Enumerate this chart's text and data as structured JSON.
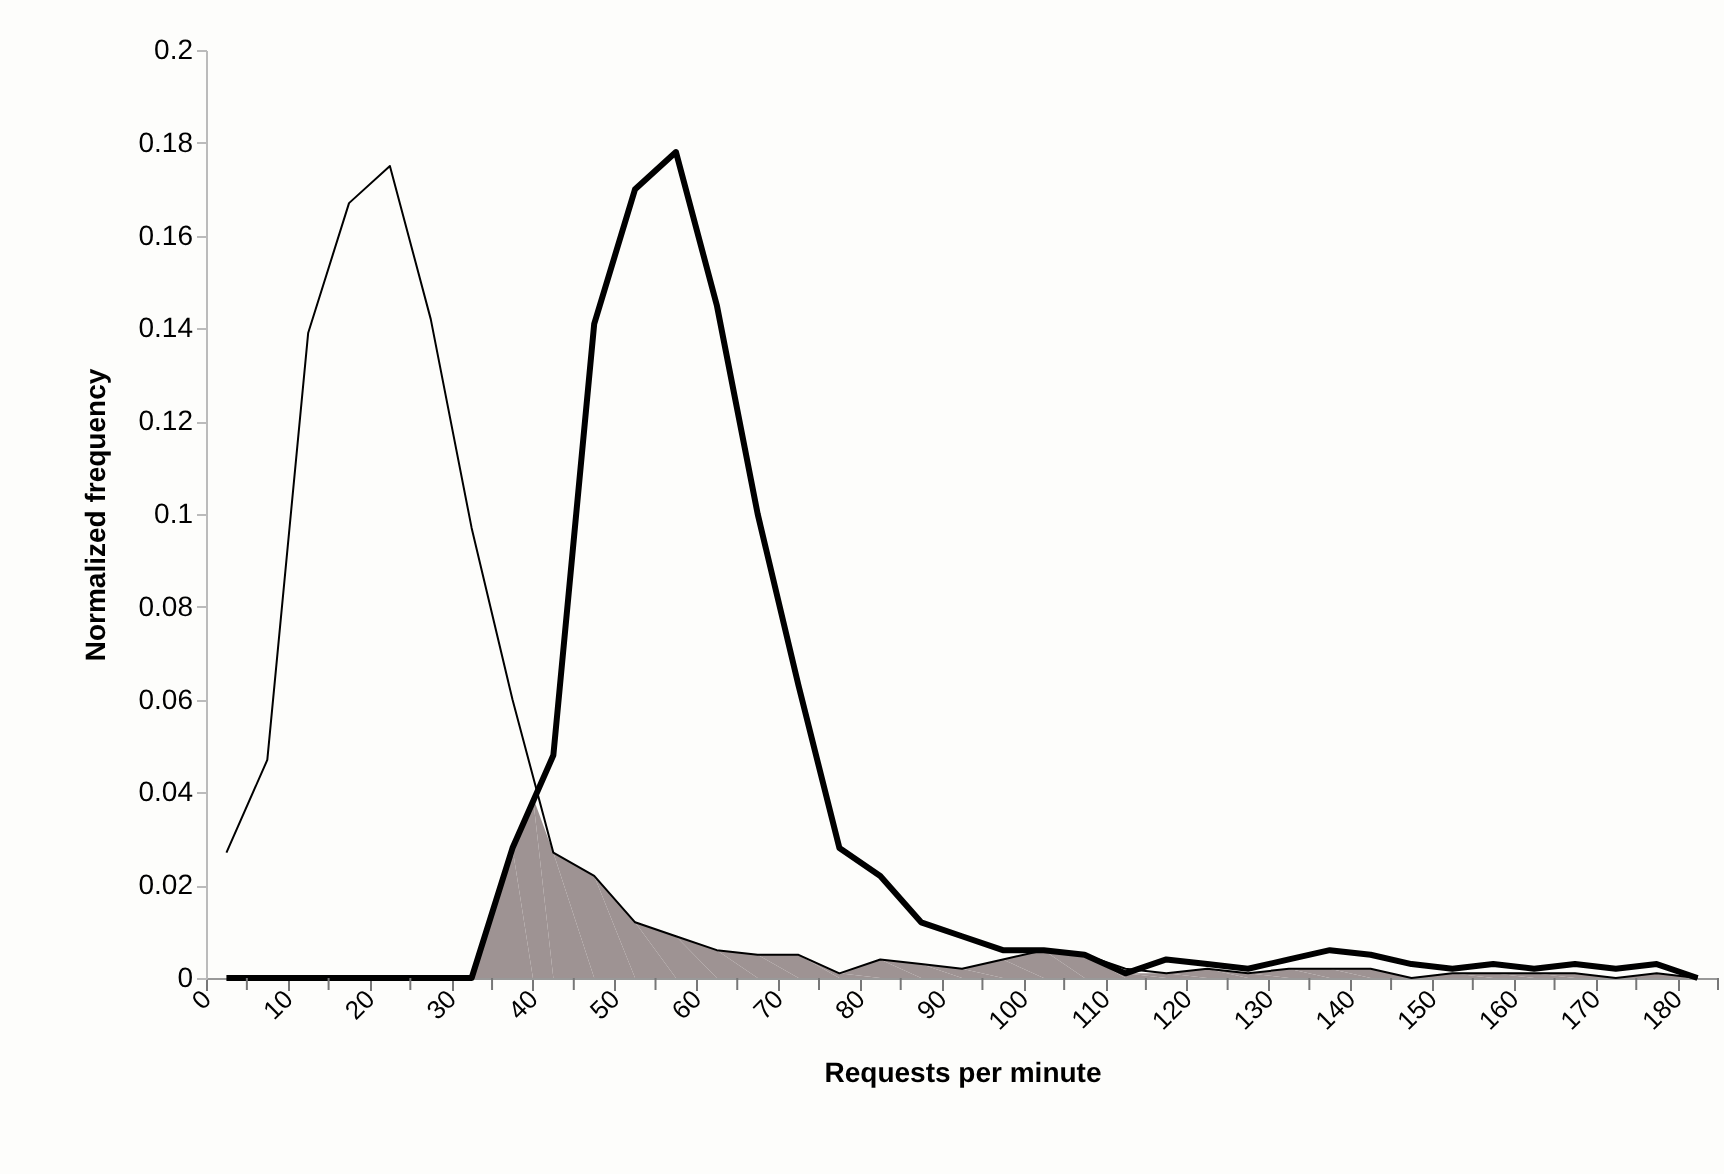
{
  "chart_data": {
    "type": "line",
    "xlabel": "Requests per minute",
    "ylabel": "Normalized frequency",
    "x": [
      2.5,
      7.5,
      12.5,
      17.5,
      22.5,
      27.5,
      32.5,
      37.5,
      42.5,
      47.5,
      52.5,
      57.5,
      62.5,
      67.5,
      72.5,
      77.5,
      82.5,
      87.5,
      92.5,
      97.5,
      102.5,
      107.5,
      112.5,
      117.5,
      122.5,
      127.5,
      132.5,
      137.5,
      142.5,
      147.5,
      152.5,
      157.5,
      162.5,
      167.5,
      172.5,
      177.5,
      182.5
    ],
    "series": [
      {
        "type": "area",
        "color": "#9e9393",
        "x": [
          2.5,
          7.5,
          12.5,
          17.5,
          22.5,
          27.5,
          32.5,
          37.5,
          40,
          42.5,
          47.5,
          52.5,
          57.5,
          62.5,
          67.5,
          72.5,
          77.5,
          82.5,
          87.5,
          92.5,
          97.5,
          102.5,
          107.5,
          112.5,
          117.5,
          122.5,
          127.5,
          132.5,
          137.5,
          142.5,
          147.5,
          152.5,
          157.5,
          162.5,
          167.5,
          172.5,
          177.5,
          182.5
        ],
        "values": [
          0,
          0,
          0,
          0,
          0,
          0,
          0,
          0.028,
          0.039,
          0.027,
          0.022,
          0.012,
          0.009,
          0.006,
          0.005,
          0.005,
          0.001,
          0.004,
          0.003,
          0.002,
          0.004,
          0.006,
          0.005,
          0.001,
          0.001,
          0.002,
          0.001,
          0.002,
          0.002,
          0.002,
          0.0,
          0.001,
          0.001,
          0.001,
          0.001,
          0.0,
          0.001,
          0.0
        ]
      },
      {
        "color": "#000000",
        "values": [
          0.027,
          0.047,
          0.139,
          0.167,
          0.175,
          0.142,
          0.097,
          0.06,
          0.027,
          0.022,
          0.012,
          0.009,
          0.006,
          0.005,
          0.005,
          0.001,
          0.004,
          0.003,
          0.002,
          0.004,
          0.006,
          0.005,
          0.002,
          0.001,
          0.002,
          0.001,
          0.002,
          0.002,
          0.002,
          0.0,
          0.001,
          0.001,
          0.001,
          0.001,
          0.0,
          0.001,
          0.0
        ]
      },
      {
        "color": "#000000",
        "values": [
          0,
          0,
          0,
          0,
          0,
          0,
          0,
          0.028,
          0.048,
          0.141,
          0.17,
          0.178,
          0.145,
          0.1,
          0.063,
          0.028,
          0.022,
          0.012,
          0.009,
          0.006,
          0.006,
          0.005,
          0.001,
          0.004,
          0.003,
          0.002,
          0.004,
          0.006,
          0.005,
          0.003,
          0.002,
          0.003,
          0.002,
          0.003,
          0.002,
          0.003,
          0.0
        ]
      }
    ],
    "xlim": [
      0,
      185
    ],
    "xticks": [
      0,
      {
        "value": 5,
        "label": null
      },
      10,
      {
        "value": 15,
        "label": null
      },
      20,
      {
        "value": 25,
        "label": null
      },
      30,
      {
        "value": 35,
        "label": null
      },
      40,
      {
        "value": 45,
        "label": null
      },
      50,
      {
        "value": 55,
        "label": null
      },
      60,
      {
        "value": 65,
        "label": null
      },
      70,
      {
        "value": 75,
        "label": null
      },
      80,
      {
        "value": 85,
        "label": null
      },
      90,
      {
        "value": 95,
        "label": null
      },
      100,
      {
        "value": 105,
        "label": null
      },
      110,
      {
        "value": 115,
        "label": null
      },
      120,
      {
        "value": 125,
        "label": null
      },
      130,
      {
        "value": 135,
        "label": null
      },
      140,
      {
        "value": 145,
        "label": null
      },
      150,
      {
        "value": 155,
        "label": null
      },
      160,
      {
        "value": 165,
        "label": null
      },
      170,
      {
        "value": 175,
        "label": null
      },
      180,
      {
        "value": 185,
        "label": null
      }
    ],
    "ylim": [
      0,
      0.2
    ],
    "yticks": [
      0,
      0.02,
      0.04,
      0.06,
      0.08,
      0.1,
      0.12,
      0.14,
      0.16,
      0.18,
      0.2
    ],
    "grid": false,
    "marker": "none",
    "line_style": "solid"
  }
}
